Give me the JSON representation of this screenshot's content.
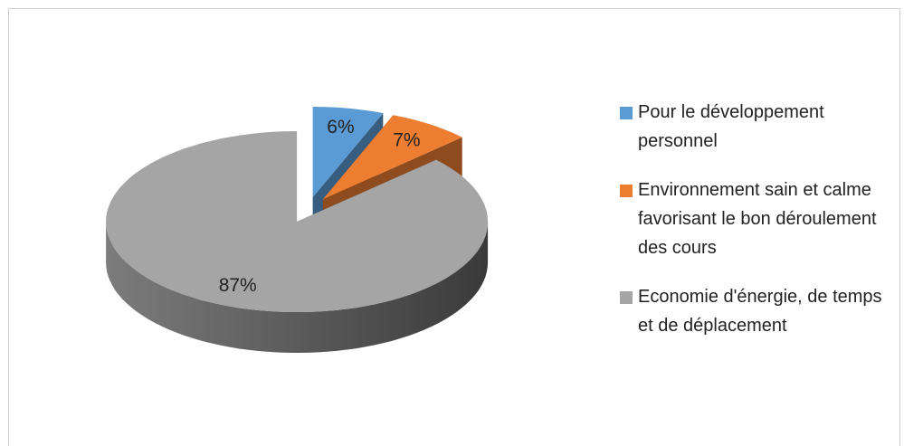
{
  "chart_data": {
    "type": "pie",
    "categories": [
      "Pour le développement personnel",
      "Environnement sain et calme favorisant le bon déroulement des cours",
      "Economie d'énergie, de temps et de déplacement"
    ],
    "values": [
      6,
      7,
      87
    ],
    "value_labels": [
      "6%",
      "7%",
      "87%"
    ],
    "colors": [
      "#5b9bd5",
      "#ed7d31",
      "#a5a5a5"
    ],
    "legend": "right"
  }
}
